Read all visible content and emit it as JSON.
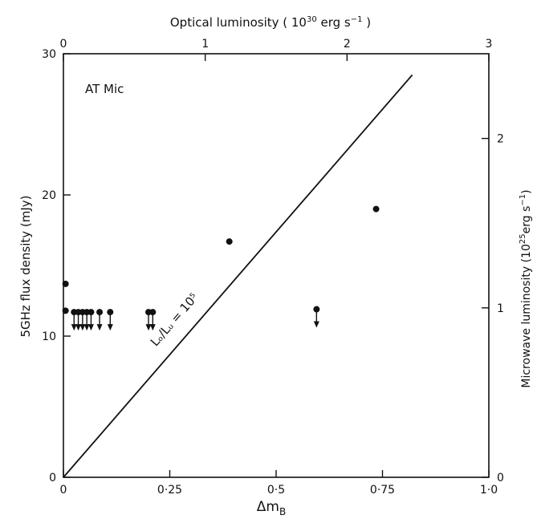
{
  "chart_data": {
    "type": "scatter",
    "panel_label": "AT Mic",
    "line_label": "Lₒ/Lᵤ = 10⁵",
    "x_bottom": {
      "label": "Δm",
      "label_sub": "B",
      "lim": [
        0,
        1.0
      ],
      "ticks": [
        0,
        0.25,
        0.5,
        0.75,
        1.0
      ],
      "tick_labels": [
        "0",
        "0·25",
        "0·5",
        "0·75",
        "1·0"
      ]
    },
    "x_top": {
      "label_pre": "Optical luminosity ( 10",
      "label_sup": "30",
      "label_post": " erg s",
      "label_sup2": "−1",
      "label_end": " )",
      "lim": [
        0,
        3
      ],
      "ticks": [
        0,
        1,
        2,
        3
      ],
      "tick_labels": [
        "0",
        "1",
        "2",
        "3"
      ]
    },
    "y_left": {
      "label": "5GHz flux density (mJy)",
      "lim": [
        0,
        30
      ],
      "ticks": [
        0,
        10,
        20,
        30
      ],
      "tick_labels": [
        "0",
        "10",
        "20",
        "30"
      ]
    },
    "y_right": {
      "label_pre": "Microwave luminosity (10",
      "label_sup": "25",
      "label_post": "erg s",
      "label_sup2": "−1",
      "label_end": ")",
      "lim": [
        0,
        2.5
      ],
      "ticks": [
        0,
        1,
        2
      ],
      "tick_labels": [
        "0",
        "1",
        "2"
      ]
    },
    "detections": [
      {
        "x": 0.005,
        "y": 13.7
      },
      {
        "x": 0.005,
        "y": 11.8
      },
      {
        "x": 0.39,
        "y": 16.7
      },
      {
        "x": 0.735,
        "y": 19.0
      }
    ],
    "upper_limits": [
      {
        "x": 0.025,
        "y": 11.7
      },
      {
        "x": 0.035,
        "y": 11.7
      },
      {
        "x": 0.045,
        "y": 11.7
      },
      {
        "x": 0.055,
        "y": 11.7
      },
      {
        "x": 0.065,
        "y": 11.7
      },
      {
        "x": 0.085,
        "y": 11.7
      },
      {
        "x": 0.11,
        "y": 11.7
      },
      {
        "x": 0.2,
        "y": 11.7
      },
      {
        "x": 0.21,
        "y": 11.7
      },
      {
        "x": 0.595,
        "y": 11.9
      }
    ],
    "relation_line": {
      "x": [
        0,
        0.82
      ],
      "y": [
        0,
        28.5
      ]
    }
  }
}
